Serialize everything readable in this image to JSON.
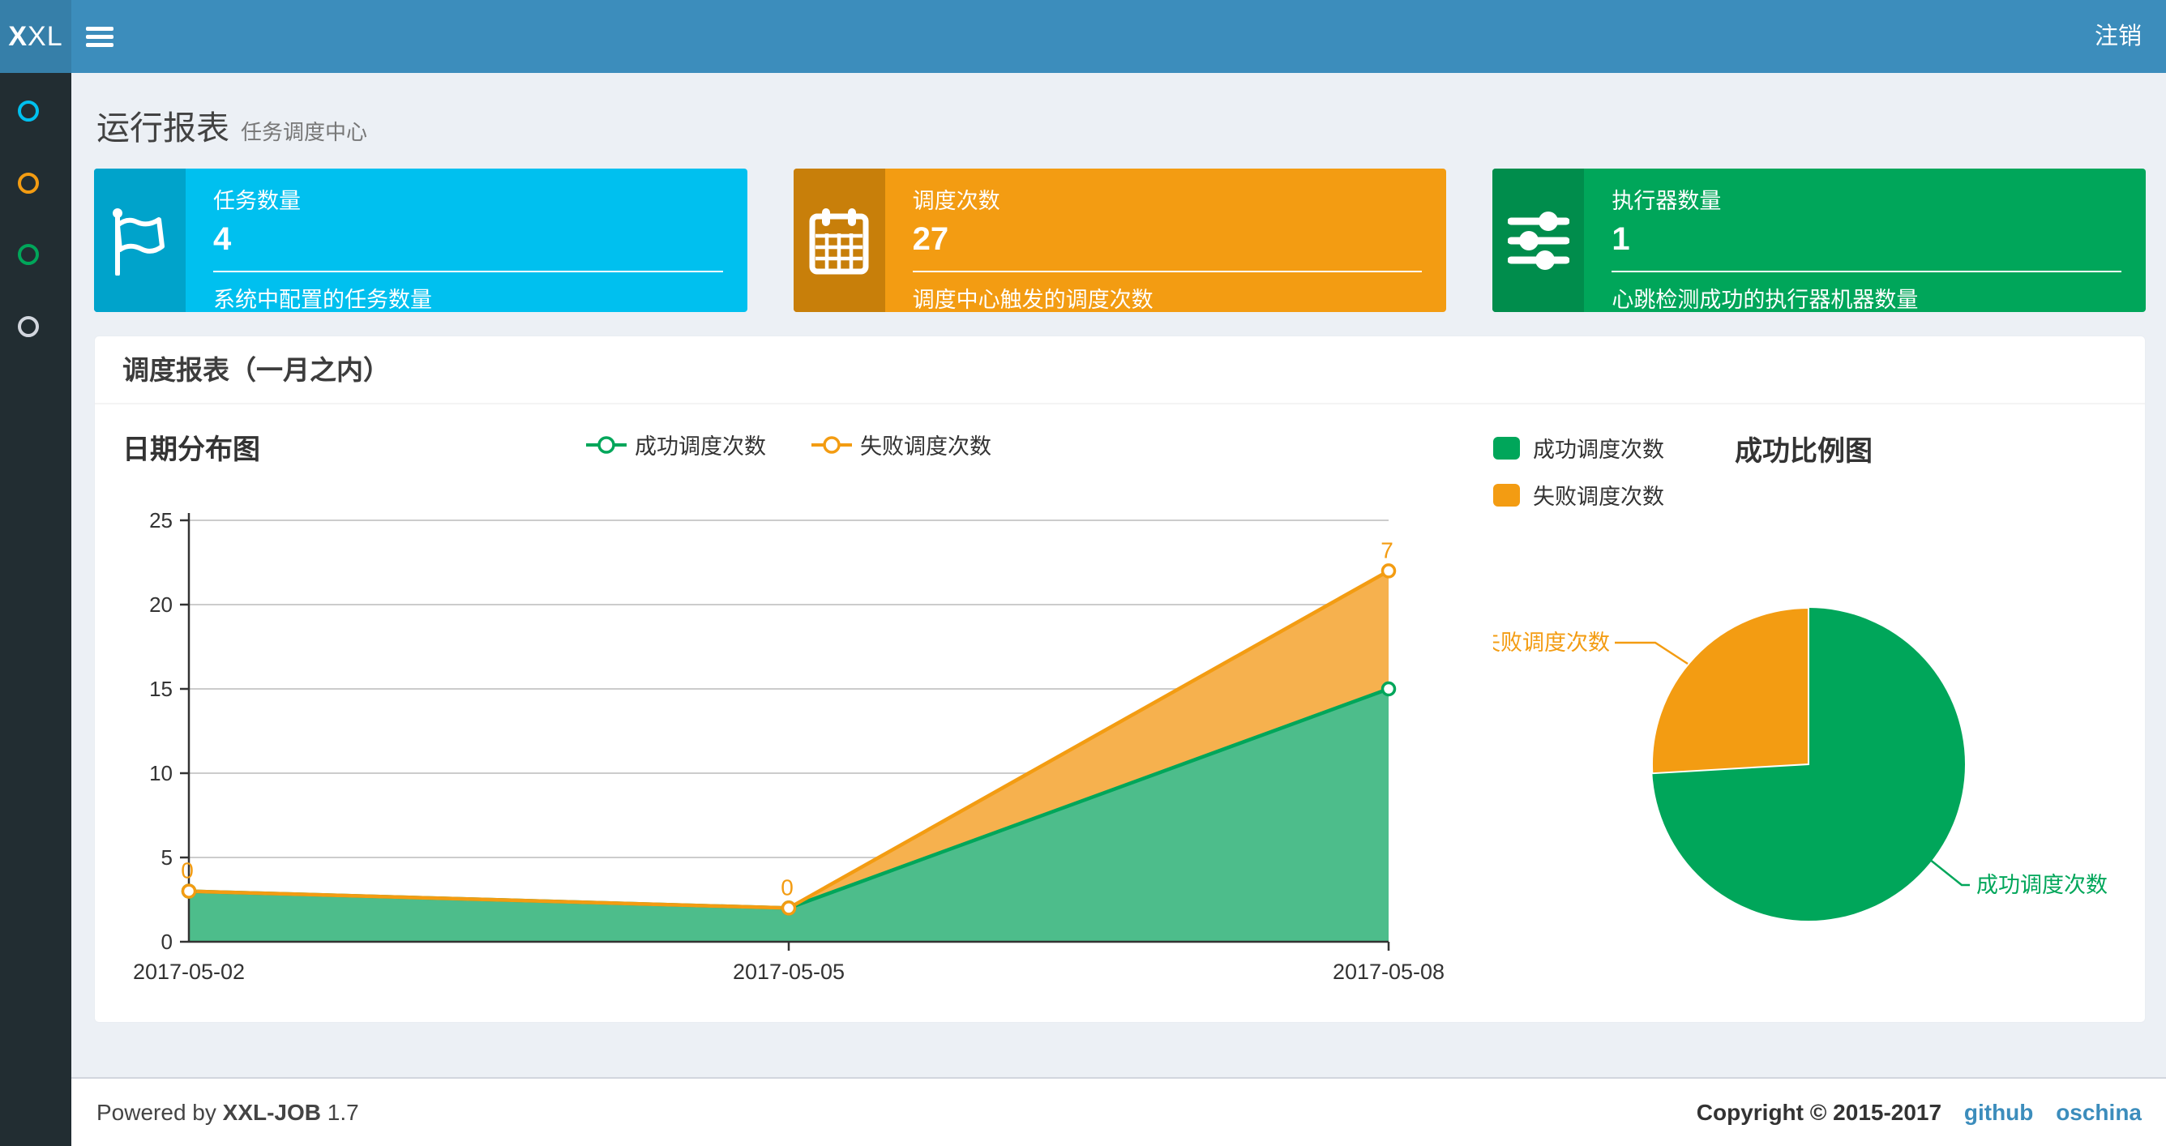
{
  "navbar": {
    "logo_bold": "X",
    "logo_rest": "XL",
    "logout_label": "注销"
  },
  "sidebar": {
    "items": [
      {
        "name": "menu-item-1",
        "color": "#00c0ef"
      },
      {
        "name": "menu-item-2",
        "color": "#f39c12"
      },
      {
        "name": "menu-item-3",
        "color": "#00a65a"
      },
      {
        "name": "menu-item-4",
        "color": "#d2d6de"
      }
    ]
  },
  "page_header": {
    "title": "运行报表",
    "subtitle": "任务调度中心"
  },
  "cards": [
    {
      "icon": "flag-icon",
      "label": "任务数量",
      "value": "4",
      "desc": "系统中配置的任务数量",
      "bg": "#00c0ef",
      "icon_bg": "#00a3cb"
    },
    {
      "icon": "calendar-icon",
      "label": "调度次数",
      "value": "27",
      "desc": "调度中心触发的调度次数",
      "bg": "#f39c12",
      "icon_bg": "#c87f0a"
    },
    {
      "icon": "sliders-icon",
      "label": "执行器数量",
      "value": "1",
      "desc": "心跳检测成功的执行器机器数量",
      "bg": "#00a65a",
      "icon_bg": "#008d4c"
    }
  ],
  "panel": {
    "title": "调度报表（一月之内）"
  },
  "chart_data": [
    {
      "type": "area",
      "title": "日期分布图",
      "stacked": true,
      "grid": true,
      "legend_position": "top-center",
      "x": [
        "2017-05-02",
        "2017-05-05",
        "2017-05-08"
      ],
      "ylim": [
        0,
        25
      ],
      "ytick_interval": 5,
      "yticks": [
        0,
        5,
        10,
        15,
        20,
        25
      ],
      "series": [
        {
          "name": "成功调度次数",
          "color": "#00A65A",
          "fill": "#4DBD8B",
          "values": [
            3,
            2,
            15
          ]
        },
        {
          "name": "失败调度次数",
          "color": "#F39C12",
          "fill": "#F6B14E",
          "values": [
            0,
            0,
            7
          ],
          "point_labels": [
            "0",
            "0",
            "7"
          ]
        }
      ]
    },
    {
      "type": "pie",
      "title": "成功比例图",
      "legend_position": "top-left",
      "slices": [
        {
          "name": "成功调度次数",
          "value": 20,
          "color": "#00A65A"
        },
        {
          "name": "失败调度次数",
          "value": 7,
          "color": "#F39C12"
        }
      ]
    }
  ],
  "footer": {
    "powered_prefix": "Powered by",
    "product": "XXL-JOB",
    "version": "1.7",
    "copyright": "Copyright © 2015-2017",
    "links": [
      {
        "label": "github"
      },
      {
        "label": "oschina"
      }
    ]
  }
}
